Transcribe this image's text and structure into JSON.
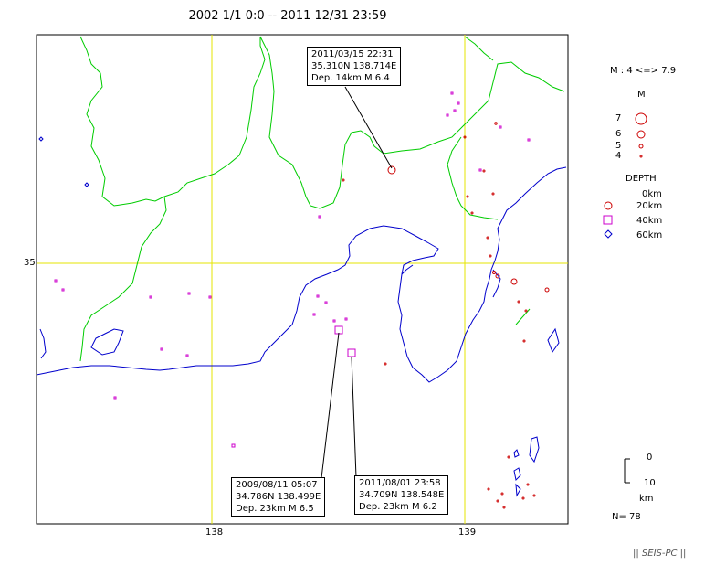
{
  "title": "2002 1/1 0:0 -- 2011 12/31 23:59",
  "map": {
    "lat_gridline_label": "35",
    "lon_gridline_labels": [
      "138",
      "139"
    ],
    "grid_color": "#ffff00",
    "coastline_color": "#0000cc",
    "prefecture_border_color": "#00cc00"
  },
  "annotations": [
    {
      "id": "a1",
      "datetime": "2011/03/15 22:31",
      "coords": "35.310N   138.714E",
      "depth_mag": "Dep. 14km    M 6.4"
    },
    {
      "id": "a2",
      "datetime": "2009/08/11 05:07",
      "coords": "34.786N   138.499E",
      "depth_mag": "Dep. 23km    M 6.5"
    },
    {
      "id": "a3",
      "datetime": "2011/08/01 23:58",
      "coords": "34.709N   138.548E",
      "depth_mag": "Dep. 23km    M 6.2"
    }
  ],
  "legend": {
    "magnitude_range": "M : 4 <=> 7.9",
    "magnitude_title": "M",
    "magnitudes": [
      "7",
      "6",
      "5",
      "4"
    ],
    "depth_title": "DEPTH",
    "depths": [
      "0km",
      "20km",
      "40km",
      "60km"
    ],
    "shallow_color": "#cc0000",
    "mid_color": "#cc00cc",
    "deep_color": "#0000cc"
  },
  "scale": {
    "top": "0",
    "bottom": "10",
    "unit": "km"
  },
  "count": "N= 78",
  "footer": "|| SEIS-PC ||"
}
